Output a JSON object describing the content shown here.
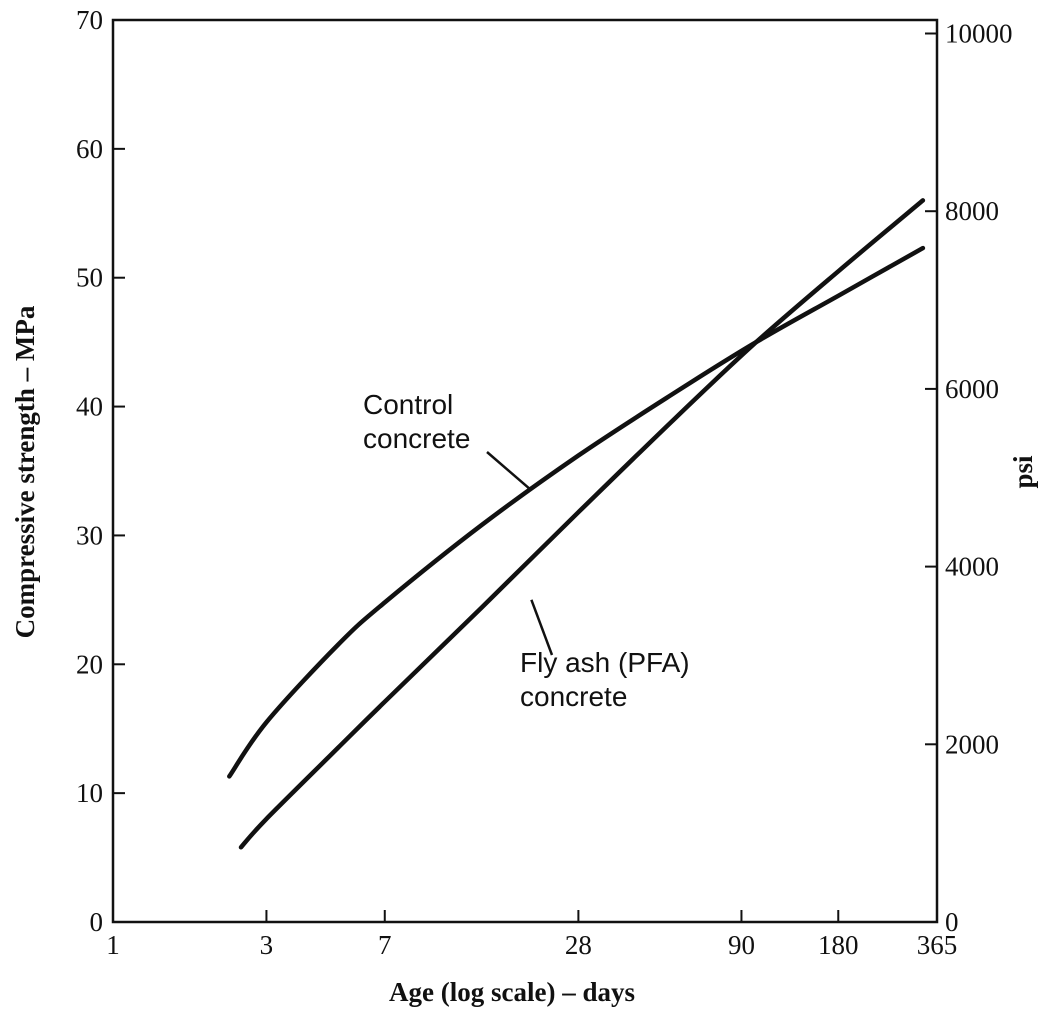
{
  "chart_data": {
    "type": "line",
    "xscale": "log",
    "xlim": [
      1,
      365
    ],
    "ylim": [
      0,
      70
    ],
    "y2lim": [
      0,
      10152
    ],
    "xlabel": "Age (log scale) – days",
    "ylabel": "Compressive strength – MPa",
    "y2label": "psi",
    "xticks": [
      1,
      3,
      7,
      28,
      90,
      180,
      365
    ],
    "yticks": [
      0,
      10,
      20,
      30,
      40,
      50,
      60,
      70
    ],
    "y2ticks": [
      0,
      2000,
      4000,
      6000,
      8000,
      10000
    ],
    "grid": false,
    "legend": "none",
    "series": [
      {
        "name": "Control concrete",
        "color": "#111111",
        "x": [
          2.3,
          3,
          5,
          7,
          14,
          28,
          56,
          100,
          180,
          330
        ],
        "y": [
          11.3,
          15.5,
          21.5,
          24.8,
          30.8,
          36.2,
          41.1,
          45.0,
          48.6,
          52.3
        ]
      },
      {
        "name": "Fly ash (PFA) concrete",
        "color": "#111111",
        "x": [
          2.5,
          3,
          5,
          7,
          14,
          28,
          56,
          100,
          180,
          330
        ],
        "y": [
          5.8,
          8.0,
          13.5,
          17.1,
          24.4,
          31.8,
          39.1,
          45.0,
          50.5,
          56.0
        ]
      }
    ],
    "annotations": [
      {
        "id": "control",
        "lines": [
          "Control",
          "concrete"
        ],
        "points_to": {
          "x": 20,
          "y": 33.5
        }
      },
      {
        "id": "flyash",
        "lines": [
          "Fly ash (PFA)",
          "concrete"
        ],
        "points_to": {
          "x": 20,
          "y": 25
        }
      }
    ]
  }
}
